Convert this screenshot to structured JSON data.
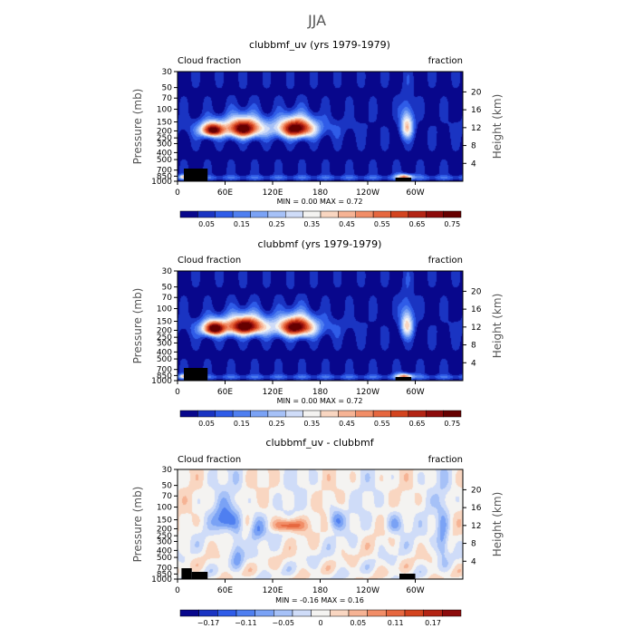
{
  "page_title": "JJA",
  "chart_data": [
    {
      "type": "heatmap",
      "title": "clubbmf_uv (yrs 1979-1979)",
      "left_label": "Cloud fraction",
      "right_label": "fraction",
      "ylabel": "Pressure (mb)",
      "y2label": "Height (km)",
      "xticks": [
        "0",
        "60E",
        "120E",
        "180",
        "120W",
        "60W"
      ],
      "xtick_lon": [
        0,
        60,
        120,
        180,
        240,
        300
      ],
      "xlim": [
        0,
        360
      ],
      "yticks": [
        "30",
        "50",
        "70",
        "100",
        "150",
        "200",
        "250",
        "300",
        "400",
        "500",
        "700",
        "850",
        "1000"
      ],
      "ytick_p": [
        30,
        50,
        70,
        100,
        150,
        200,
        250,
        300,
        400,
        500,
        700,
        850,
        1000
      ],
      "ylim": [
        1000,
        30
      ],
      "y2ticks": [
        "20",
        "16",
        "12",
        "8",
        "4"
      ],
      "y2tick_km": [
        20,
        16,
        12,
        8,
        4
      ],
      "stats": "MIN =    0.00   MAX =    0.72",
      "colorbar_labels": [
        "0.05",
        "0.15",
        "0.25",
        "0.35",
        "0.45",
        "0.55",
        "0.65",
        "0.75"
      ],
      "colorbar_colors": [
        "#08078c",
        "#1a34c2",
        "#2f5ce8",
        "#4f7ff0",
        "#7aa2f5",
        "#a6c1f7",
        "#cfdcf8",
        "#f4f3f1",
        "#f9d6c1",
        "#f6b394",
        "#f18d67",
        "#e6673f",
        "#d3441f",
        "#b32414",
        "#8c0b0b",
        "#660000"
      ],
      "features": [
        {
          "lon": 43,
          "p": 195,
          "value": 0.7,
          "lon_w": 14,
          "p_w": 45
        },
        {
          "lon": 83,
          "p": 185,
          "value": 0.68,
          "lon_w": 22,
          "p_w": 60
        },
        {
          "lon": 150,
          "p": 185,
          "value": 0.7,
          "lon_w": 22,
          "p_w": 60
        },
        {
          "lon": 290,
          "p": 170,
          "value": 0.42,
          "lon_w": 8,
          "p_w": 80
        },
        {
          "lon": 287,
          "p": 880,
          "value": 0.45,
          "lon_w": 10,
          "p_w": 80
        },
        {
          "lon": 8,
          "p": 880,
          "value": 0.32,
          "lon_w": 6,
          "p_w": 60
        }
      ]
    },
    {
      "type": "heatmap",
      "title": "clubbmf (yrs 1979-1979)",
      "left_label": "Cloud fraction",
      "right_label": "fraction",
      "ylabel": "Pressure (mb)",
      "y2label": "Height (km)",
      "xticks": [
        "0",
        "60E",
        "120E",
        "180",
        "120W",
        "60W"
      ],
      "xtick_lon": [
        0,
        60,
        120,
        180,
        240,
        300
      ],
      "xlim": [
        0,
        360
      ],
      "yticks": [
        "30",
        "50",
        "70",
        "100",
        "150",
        "200",
        "250",
        "300",
        "400",
        "500",
        "700",
        "850",
        "1000"
      ],
      "ytick_p": [
        30,
        50,
        70,
        100,
        150,
        200,
        250,
        300,
        400,
        500,
        700,
        850,
        1000
      ],
      "ylim": [
        1000,
        30
      ],
      "y2ticks": [
        "20",
        "16",
        "12",
        "8",
        "4"
      ],
      "y2tick_km": [
        20,
        16,
        12,
        8,
        4
      ],
      "stats": "MIN =    0.00   MAX =    0.72",
      "colorbar_labels": [
        "0.05",
        "0.15",
        "0.25",
        "0.35",
        "0.45",
        "0.55",
        "0.65",
        "0.75"
      ],
      "colorbar_colors": [
        "#08078c",
        "#1a34c2",
        "#2f5ce8",
        "#4f7ff0",
        "#7aa2f5",
        "#a6c1f7",
        "#cfdcf8",
        "#f4f3f1",
        "#f9d6c1",
        "#f6b394",
        "#f18d67",
        "#e6673f",
        "#d3441f",
        "#b32414",
        "#8c0b0b",
        "#660000"
      ],
      "features": [
        {
          "lon": 45,
          "p": 190,
          "value": 0.72,
          "lon_w": 14,
          "p_w": 45
        },
        {
          "lon": 85,
          "p": 175,
          "value": 0.7,
          "lon_w": 24,
          "p_w": 55
        },
        {
          "lon": 150,
          "p": 180,
          "value": 0.7,
          "lon_w": 22,
          "p_w": 60
        },
        {
          "lon": 290,
          "p": 165,
          "value": 0.4,
          "lon_w": 8,
          "p_w": 80
        },
        {
          "lon": 287,
          "p": 880,
          "value": 0.45,
          "lon_w": 10,
          "p_w": 80
        },
        {
          "lon": 8,
          "p": 880,
          "value": 0.32,
          "lon_w": 6,
          "p_w": 60
        }
      ]
    },
    {
      "type": "heatmap",
      "title": "clubbmf_uv - clubbmf",
      "left_label": "Cloud fraction",
      "right_label": "fraction",
      "ylabel": "Pressure (mb)",
      "y2label": "Height (km)",
      "xticks": [
        "0",
        "60E",
        "120E",
        "180",
        "120W",
        "60W"
      ],
      "xtick_lon": [
        0,
        60,
        120,
        180,
        240,
        300
      ],
      "xlim": [
        0,
        360
      ],
      "yticks": [
        "30",
        "50",
        "70",
        "100",
        "150",
        "200",
        "250",
        "300",
        "400",
        "500",
        "700",
        "850",
        "1000"
      ],
      "ytick_p": [
        30,
        50,
        70,
        100,
        150,
        200,
        250,
        300,
        400,
        500,
        700,
        850,
        1000
      ],
      "ylim": [
        1000,
        30
      ],
      "y2ticks": [
        "20",
        "16",
        "12",
        "8",
        "4"
      ],
      "y2tick_km": [
        20,
        16,
        12,
        8,
        4
      ],
      "stats": "MIN =   -0.16   MAX =    0.16",
      "colorbar_labels": [
        "−0.17",
        "−0.11",
        "−0.05",
        "0",
        "0.05",
        "0.11",
        "0.17"
      ],
      "colorbar_colors": [
        "#08078c",
        "#1a34c2",
        "#2f5ce8",
        "#4f7ff0",
        "#7aa2f5",
        "#a6c1f7",
        "#cfdcf8",
        "#f4f3f1",
        "#f9d6c1",
        "#f6b394",
        "#f18d67",
        "#e6673f",
        "#d3441f",
        "#b32414",
        "#8c0b0b"
      ],
      "features": [
        {
          "lon": 140,
          "p": 180,
          "value": 0.14,
          "lon_w": 18,
          "p_w": 35
        },
        {
          "lon": 60,
          "p": 150,
          "value": -0.12,
          "lon_w": 14,
          "p_w": 60
        },
        {
          "lon": 75,
          "p": 400,
          "value": -0.08,
          "lon_w": 8,
          "p_w": 250
        },
        {
          "lon": 100,
          "p": 200,
          "value": -0.1,
          "lon_w": 10,
          "p_w": 80
        },
        {
          "lon": 200,
          "p": 150,
          "value": -0.09,
          "lon_w": 10,
          "p_w": 50
        },
        {
          "lon": 275,
          "p": 170,
          "value": -0.08,
          "lon_w": 12,
          "p_w": 60
        },
        {
          "lon": 335,
          "p": 300,
          "value": -0.1,
          "lon_w": 8,
          "p_w": 200
        }
      ]
    }
  ]
}
